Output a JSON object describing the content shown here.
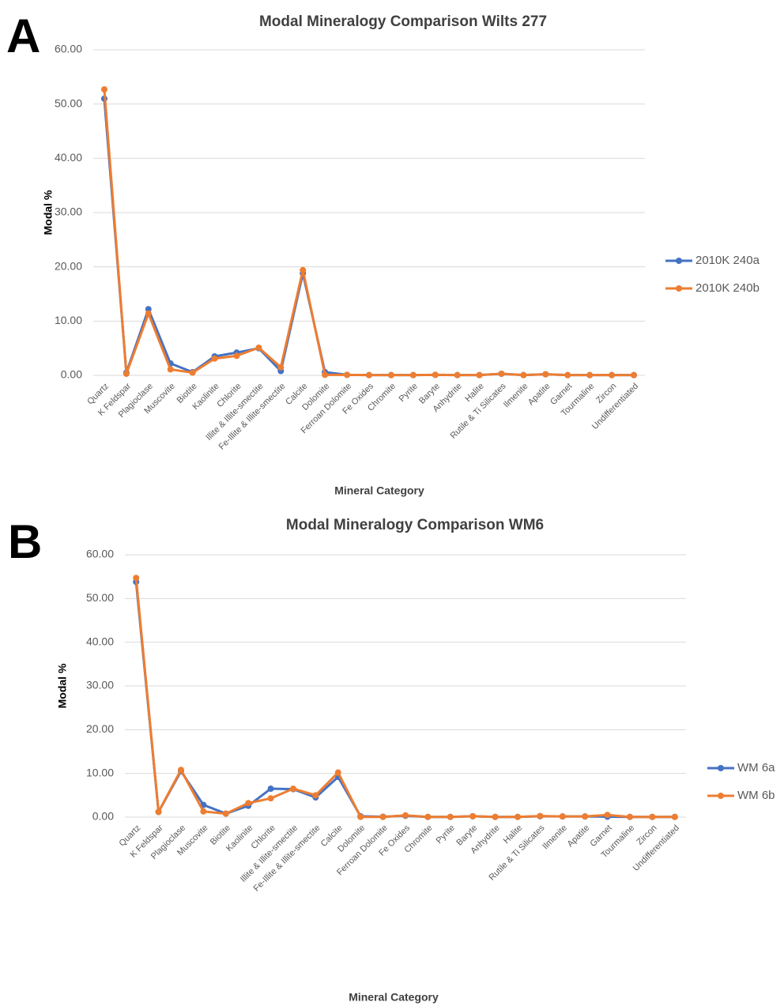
{
  "chart_data": [
    {
      "type": "line",
      "panel_label": "A",
      "title": "Modal Mineralogy Comparison Wilts 277",
      "x_label": "Mineral Category",
      "y_label": "Modal %",
      "categories": [
        "Quartz",
        "K Feldspar",
        "Plagioclase",
        "Muscovite",
        "Biotite",
        "Kaolinite",
        "Chlorite",
        "Illite & Illite-smectite",
        "Fe-Illite & Illite-smectite",
        "Calcite",
        "Dolomite",
        "Ferroan Dolomite",
        "Fe Oxides",
        "Chromite",
        "Pyrite",
        "Baryte",
        "Anhydrite",
        "Halite",
        "Rutile & Ti Silicates",
        "Ilmenite",
        "Apatite",
        "Garnet",
        "Tourmaline",
        "Zircon",
        "Undifferentiated"
      ],
      "series": [
        {
          "name": "2010K 240a",
          "color": "#4472c4",
          "values": [
            51,
            0.5,
            12.2,
            2.2,
            0.6,
            3.5,
            4.2,
            5.0,
            0.8,
            18.8,
            0.6,
            0.1,
            0.05,
            0.05,
            0.05,
            0.1,
            0.05,
            0.05,
            0.3,
            0.05,
            0.2,
            0.05,
            0.05,
            0.05,
            0.05
          ]
        },
        {
          "name": "2010K 240b",
          "color": "#ed7d31",
          "values": [
            52.7,
            0.3,
            11.4,
            1.1,
            0.5,
            3.1,
            3.6,
            5.1,
            1.5,
            19.4,
            0.1,
            0.1,
            0.05,
            0.05,
            0.05,
            0.1,
            0.05,
            0.05,
            0.3,
            0.05,
            0.2,
            0.05,
            0.05,
            0.05,
            0.05
          ]
        }
      ],
      "ylim": [
        0,
        60
      ],
      "yticks": [
        {
          "value": 0,
          "label": "0.00"
        },
        {
          "value": 10,
          "label": "10.00"
        },
        {
          "value": 20,
          "label": "20.00"
        },
        {
          "value": 30,
          "label": "30.00"
        },
        {
          "value": 40,
          "label": "40.00"
        },
        {
          "value": 50,
          "label": "50.00"
        },
        {
          "value": 60,
          "label": "60.00"
        }
      ],
      "grid": true,
      "legend": "right"
    },
    {
      "type": "line",
      "panel_label": "B",
      "title": "Modal Mineralogy Comparison WM6",
      "x_label": "Mineral Category",
      "y_label": "Modal %",
      "categories": [
        "Quartz",
        "K Feldspar",
        "Plagioclase",
        "Muscovite",
        "Biotite",
        "Kaolinite",
        "Chlorite",
        "Illite & Illite-smectite",
        "Fe-Illite & Illite-smectite",
        "Calcite",
        "Dolomite",
        "Ferroan Dolomite",
        "Fe Oxides",
        "Chromite",
        "Pyrite",
        "Baryte",
        "Anhydrite",
        "Halite",
        "Rutile & Ti Silicates",
        "Ilmenite",
        "Apatite",
        "Garnet",
        "Tourmaline",
        "Zircon",
        "Undifferentiated"
      ],
      "series": [
        {
          "name": "WM 6a",
          "color": "#4472c4",
          "values": [
            53.8,
            1.2,
            10.5,
            2.8,
            0.8,
            2.6,
            6.5,
            6.4,
            4.5,
            9.2,
            0.2,
            0.1,
            0.3,
            0.05,
            0.05,
            0.2,
            0.05,
            0.05,
            0.2,
            0.15,
            0.15,
            0.1,
            0.05,
            0.05,
            0.05
          ]
        },
        {
          "name": "WM 6b",
          "color": "#ed7d31",
          "values": [
            54.7,
            1.2,
            10.8,
            1.3,
            0.8,
            3.2,
            4.3,
            6.5,
            5.0,
            10.2,
            0.05,
            0.05,
            0.4,
            0.05,
            0.05,
            0.2,
            0.05,
            0.05,
            0.25,
            0.15,
            0.15,
            0.5,
            0.05,
            0.05,
            0.05
          ]
        }
      ],
      "ylim": [
        0,
        60
      ],
      "yticks": [
        {
          "value": 0,
          "label": "0.00"
        },
        {
          "value": 10,
          "label": "10.00"
        },
        {
          "value": 20,
          "label": "20.00"
        },
        {
          "value": 30,
          "label": "30.00"
        },
        {
          "value": 40,
          "label": "40.00"
        },
        {
          "value": 50,
          "label": "50.00"
        },
        {
          "value": 60,
          "label": "60.00"
        }
      ],
      "grid": true,
      "legend": "right"
    }
  ]
}
